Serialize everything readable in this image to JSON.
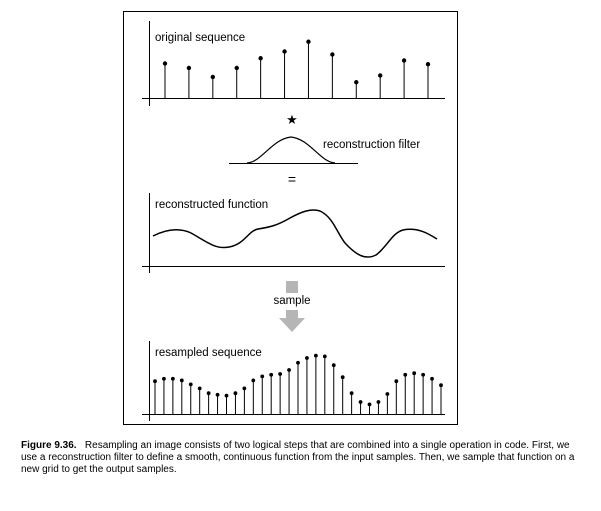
{
  "panels": {
    "original": {
      "label": "original sequence",
      "values": [
        0.46,
        0.4,
        0.28,
        0.4,
        0.53,
        0.62,
        0.75,
        0.58,
        0.21,
        0.3,
        0.5,
        0.45
      ]
    },
    "convolution_symbol": "★",
    "filter_label": "reconstruction filter",
    "equals_symbol": "=",
    "reconstructed": {
      "label": "reconstructed function"
    },
    "sample_label": "sample",
    "resampled": {
      "label": "resampled sequence",
      "values": [
        0.41,
        0.44,
        0.44,
        0.42,
        0.37,
        0.32,
        0.26,
        0.24,
        0.23,
        0.26,
        0.32,
        0.42,
        0.47,
        0.49,
        0.5,
        0.55,
        0.64,
        0.7,
        0.73,
        0.72,
        0.61,
        0.46,
        0.26,
        0.15,
        0.12,
        0.15,
        0.25,
        0.41,
        0.49,
        0.51,
        0.49,
        0.44,
        0.36
      ]
    }
  },
  "caption": {
    "label": "Figure 9.36.",
    "text": "Resampling an image consists of two logical steps that are combined into a single operation in code. First, we use a reconstruction filter to define a smooth, continuous function from the input samples. Then, we sample that function on a new grid to get the output samples."
  },
  "colors": {
    "frame": "#000000",
    "arrow": "#b5b5b5",
    "stroke": "#000000"
  }
}
